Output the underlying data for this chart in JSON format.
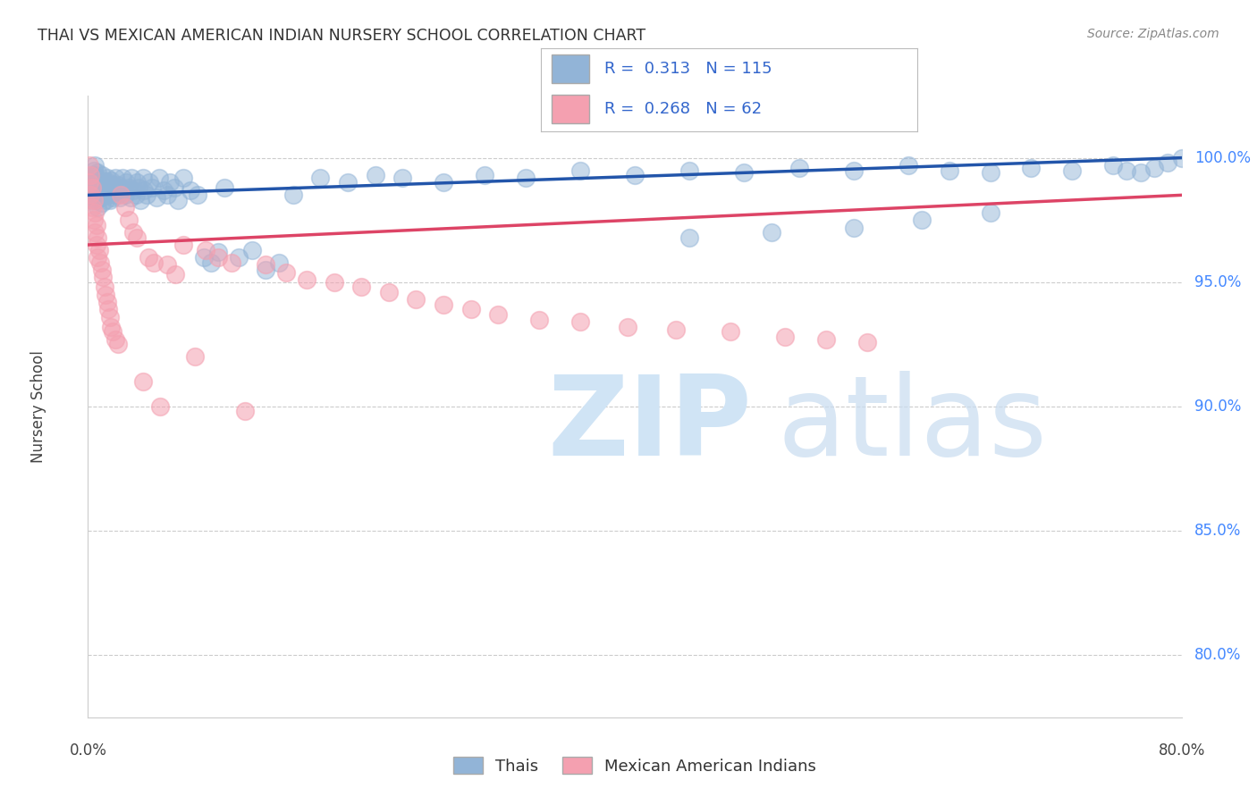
{
  "title": "THAI VS MEXICAN AMERICAN INDIAN NURSERY SCHOOL CORRELATION CHART",
  "source": "Source: ZipAtlas.com",
  "ylabel": "Nursery School",
  "ytick_labels": [
    "100.0%",
    "95.0%",
    "90.0%",
    "85.0%",
    "80.0%"
  ],
  "ytick_values": [
    1.0,
    0.95,
    0.9,
    0.85,
    0.8
  ],
  "xmin": 0.0,
  "xmax": 0.8,
  "ymin": 0.775,
  "ymax": 1.025,
  "legend_blue_label": "Thais",
  "legend_pink_label": "Mexican American Indians",
  "R_blue": 0.313,
  "N_blue": 115,
  "R_pink": 0.268,
  "N_pink": 62,
  "blue_color": "#92B4D7",
  "pink_color": "#F4A0B0",
  "line_blue_color": "#2255AA",
  "line_pink_color": "#DD4466",
  "watermark_zip": "ZIP",
  "watermark_atlas": "atlas",
  "watermark_color": "#D0E4F5",
  "background_color": "#FFFFFF",
  "grid_color": "#CCCCCC",
  "blue_line_y0": 0.985,
  "blue_line_y1": 1.0,
  "pink_line_y0": 0.965,
  "pink_line_y1": 0.985,
  "blue_scatter_x": [
    0.001,
    0.001,
    0.002,
    0.002,
    0.003,
    0.003,
    0.003,
    0.004,
    0.004,
    0.004,
    0.005,
    0.005,
    0.005,
    0.005,
    0.006,
    0.006,
    0.006,
    0.007,
    0.007,
    0.007,
    0.008,
    0.008,
    0.009,
    0.009,
    0.01,
    0.01,
    0.01,
    0.011,
    0.011,
    0.012,
    0.012,
    0.013,
    0.013,
    0.014,
    0.014,
    0.015,
    0.015,
    0.016,
    0.016,
    0.017,
    0.017,
    0.018,
    0.018,
    0.019,
    0.02,
    0.02,
    0.021,
    0.022,
    0.023,
    0.024,
    0.025,
    0.026,
    0.027,
    0.028,
    0.03,
    0.031,
    0.032,
    0.033,
    0.035,
    0.036,
    0.037,
    0.038,
    0.04,
    0.041,
    0.043,
    0.045,
    0.047,
    0.05,
    0.052,
    0.055,
    0.058,
    0.06,
    0.063,
    0.066,
    0.07,
    0.075,
    0.08,
    0.085,
    0.09,
    0.095,
    0.1,
    0.11,
    0.12,
    0.13,
    0.14,
    0.15,
    0.17,
    0.19,
    0.21,
    0.23,
    0.26,
    0.29,
    0.32,
    0.36,
    0.4,
    0.44,
    0.48,
    0.52,
    0.56,
    0.6,
    0.63,
    0.66,
    0.69,
    0.72,
    0.75,
    0.76,
    0.77,
    0.78,
    0.79,
    0.8,
    0.44,
    0.5,
    0.56,
    0.61,
    0.66
  ],
  "blue_scatter_y": [
    0.99,
    0.985,
    0.992,
    0.987,
    0.993,
    0.988,
    0.983,
    0.991,
    0.986,
    0.995,
    0.989,
    0.984,
    0.993,
    0.997,
    0.988,
    0.983,
    0.991,
    0.987,
    0.994,
    0.98,
    0.99,
    0.985,
    0.989,
    0.984,
    0.993,
    0.987,
    0.982,
    0.991,
    0.986,
    0.99,
    0.985,
    0.988,
    0.983,
    0.992,
    0.987,
    0.985,
    0.99,
    0.988,
    0.983,
    0.991,
    0.986,
    0.989,
    0.984,
    0.988,
    0.992,
    0.987,
    0.985,
    0.989,
    0.984,
    0.988,
    0.992,
    0.987,
    0.985,
    0.99,
    0.988,
    0.984,
    0.992,
    0.987,
    0.985,
    0.99,
    0.988,
    0.983,
    0.992,
    0.987,
    0.985,
    0.99,
    0.988,
    0.984,
    0.992,
    0.987,
    0.985,
    0.99,
    0.988,
    0.983,
    0.992,
    0.987,
    0.985,
    0.96,
    0.958,
    0.962,
    0.988,
    0.96,
    0.963,
    0.955,
    0.958,
    0.985,
    0.992,
    0.99,
    0.993,
    0.992,
    0.99,
    0.993,
    0.992,
    0.995,
    0.993,
    0.995,
    0.994,
    0.996,
    0.995,
    0.997,
    0.995,
    0.994,
    0.996,
    0.995,
    0.997,
    0.995,
    0.994,
    0.996,
    0.998,
    1.0,
    0.968,
    0.97,
    0.972,
    0.975,
    0.978
  ],
  "pink_scatter_x": [
    0.001,
    0.001,
    0.002,
    0.002,
    0.003,
    0.003,
    0.004,
    0.004,
    0.005,
    0.005,
    0.006,
    0.006,
    0.007,
    0.007,
    0.008,
    0.009,
    0.01,
    0.011,
    0.012,
    0.013,
    0.014,
    0.015,
    0.016,
    0.017,
    0.018,
    0.02,
    0.022,
    0.024,
    0.027,
    0.03,
    0.033,
    0.036,
    0.04,
    0.044,
    0.048,
    0.053,
    0.058,
    0.064,
    0.07,
    0.078,
    0.086,
    0.095,
    0.105,
    0.115,
    0.13,
    0.145,
    0.16,
    0.18,
    0.2,
    0.22,
    0.24,
    0.26,
    0.28,
    0.3,
    0.33,
    0.36,
    0.395,
    0.43,
    0.47,
    0.51,
    0.54,
    0.57
  ],
  "pink_scatter_y": [
    0.997,
    0.99,
    0.993,
    0.985,
    0.988,
    0.98,
    0.983,
    0.975,
    0.978,
    0.97,
    0.973,
    0.965,
    0.968,
    0.96,
    0.963,
    0.958,
    0.955,
    0.952,
    0.948,
    0.945,
    0.942,
    0.939,
    0.936,
    0.932,
    0.93,
    0.927,
    0.925,
    0.985,
    0.98,
    0.975,
    0.97,
    0.968,
    0.91,
    0.96,
    0.958,
    0.9,
    0.957,
    0.953,
    0.965,
    0.92,
    0.963,
    0.96,
    0.958,
    0.898,
    0.957,
    0.954,
    0.951,
    0.95,
    0.948,
    0.946,
    0.943,
    0.941,
    0.939,
    0.937,
    0.935,
    0.934,
    0.932,
    0.931,
    0.93,
    0.928,
    0.927,
    0.926
  ]
}
